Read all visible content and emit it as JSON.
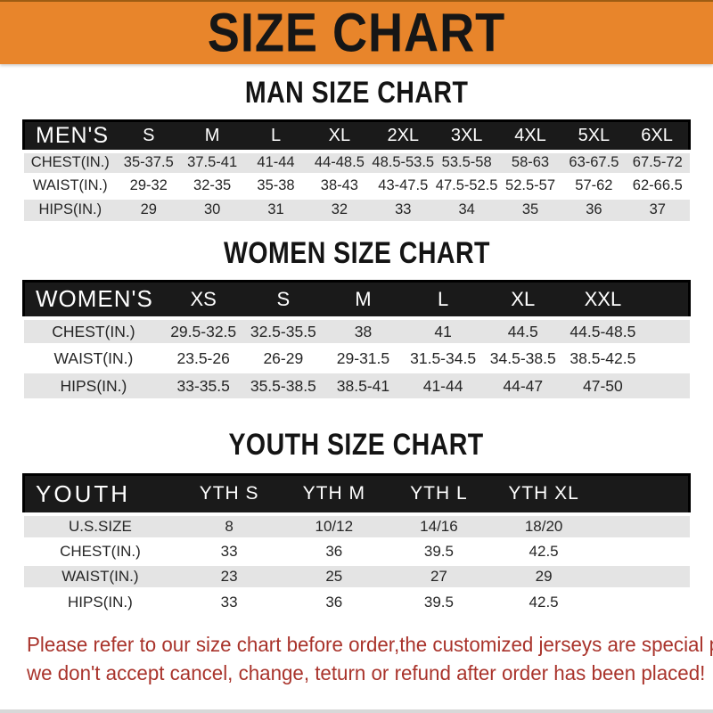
{
  "banner": {
    "title": "SIZE CHART"
  },
  "colors": {
    "banner_orange": "#E8852B",
    "header_bar_black": "#1A1A1A",
    "stripe_gray": "#E4E4E4",
    "note_red": "#A9332B",
    "text_dark": "#1E1E1E"
  },
  "sections": [
    {
      "heading": "MAN SIZE CHART",
      "header_label": "MEN'S",
      "columns": [
        "S",
        "M",
        "L",
        "XL",
        "2XL",
        "3XL",
        "4XL",
        "5XL",
        "6XL"
      ],
      "rows": [
        {
          "label": "CHEST(IN.)",
          "values": [
            "35-37.5",
            "37.5-41",
            "41-44",
            "44-48.5",
            "48.5-53.5",
            "53.5-58",
            "58-63",
            "63-67.5",
            "67.5-72"
          ]
        },
        {
          "label": "WAIST(IN.)",
          "values": [
            "29-32",
            "32-35",
            "35-38",
            "38-43",
            "43-47.5",
            "47.5-52.5",
            "52.5-57",
            "57-62",
            "62-66.5"
          ]
        },
        {
          "label": "HIPS(IN.)",
          "values": [
            "29",
            "30",
            "31",
            "32",
            "33",
            "34",
            "35",
            "36",
            "37"
          ]
        }
      ]
    },
    {
      "heading": "WOMEN SIZE CHART",
      "header_label": "WOMEN'S",
      "columns": [
        "XS",
        "S",
        "M",
        "L",
        "XL",
        "XXL"
      ],
      "rows": [
        {
          "label": "CHEST(IN.)",
          "values": [
            "29.5-32.5",
            "32.5-35.5",
            "38",
            "41",
            "44.5",
            "44.5-48.5"
          ]
        },
        {
          "label": "WAIST(IN.)",
          "values": [
            "23.5-26",
            "26-29",
            "29-31.5",
            "31.5-34.5",
            "34.5-38.5",
            "38.5-42.5"
          ]
        },
        {
          "label": "HIPS(IN.)",
          "values": [
            "33-35.5",
            "35.5-38.5",
            "38.5-41",
            "41-44",
            "44-47",
            "47-50"
          ]
        }
      ]
    },
    {
      "heading": "YOUTH SIZE CHART",
      "header_label": "YOUTH",
      "columns": [
        "YTH S",
        "YTH M",
        "YTH L",
        "YTH XL"
      ],
      "rows": [
        {
          "label": "U.S.SIZE",
          "values": [
            "8",
            "10/12",
            "14/16",
            "18/20"
          ]
        },
        {
          "label": "CHEST(IN.)",
          "values": [
            "33",
            "36",
            "39.5",
            "42.5"
          ]
        },
        {
          "label": "WAIST(IN.)",
          "values": [
            "23",
            "25",
            "27",
            "29"
          ]
        },
        {
          "label": "HIPS(IN.)",
          "values": [
            "33",
            "36",
            "39.5",
            "42.5"
          ]
        }
      ]
    }
  ],
  "footer": {
    "line1": "Please refer to our size chart before order,the customized jerseys are special products,",
    "line2": "we don't accept cancel, change, teturn or refund after order has been placed!"
  }
}
